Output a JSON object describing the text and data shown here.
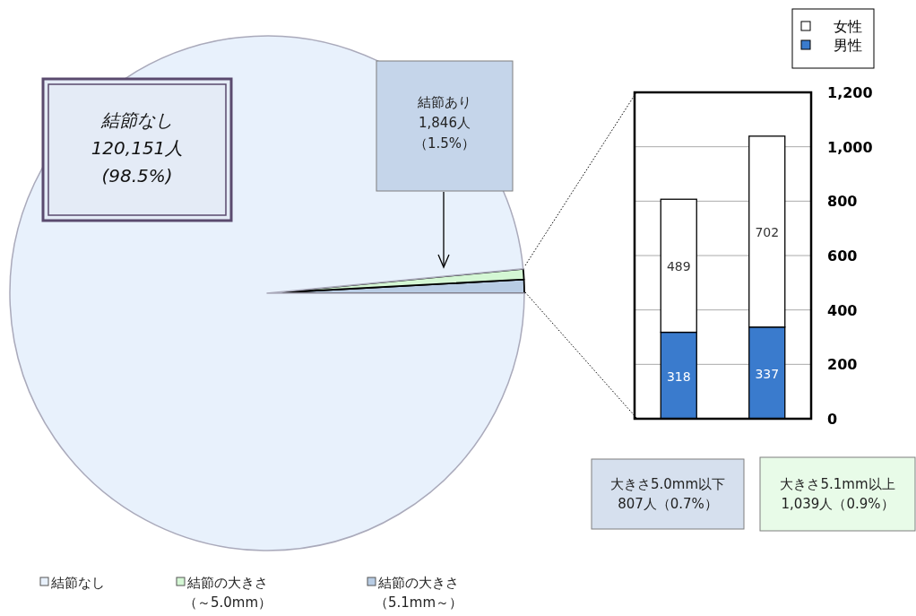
{
  "chart_data": [
    {
      "type": "pie",
      "categories": [
        "結節なし",
        "結節の大きさ（～5.0mm）",
        "結節の大きさ（5.1mm～）"
      ],
      "values": [
        98.49,
        0.66,
        0.85
      ],
      "colors": [
        "#e8f1fc",
        "#d4f7d4",
        "#b8cce4"
      ],
      "legend": "bottom",
      "annotations": [
        "結節なし\n120,151人\n(98.5%)",
        "結節あり\n1,846人（1.5%）"
      ]
    },
    {
      "type": "bar",
      "stacked": true,
      "categories": [
        null,
        null
      ],
      "series": [
        {
          "name": "男性",
          "color": "#3a7bcd",
          "values": [
            318,
            337
          ]
        },
        {
          "name": "女性",
          "color": "#ffffff",
          "values": [
            489,
            702
          ]
        }
      ],
      "ylim": [
        0,
        1200
      ],
      "yticks": [
        0,
        200,
        400,
        600,
        800,
        {
          "value": 1000,
          "label": "1,000"
        },
        {
          "value": 1200,
          "label": "1,200"
        }
      ],
      "grid": "y",
      "legend": "top right",
      "data_labels": true,
      "tick_labels": "y",
      "annotations": [
        "大きさ5.0mm以下\n807人（0.7%）",
        "大きさ5.1mm以上\n1,039人（0.9%）"
      ]
    }
  ]
}
